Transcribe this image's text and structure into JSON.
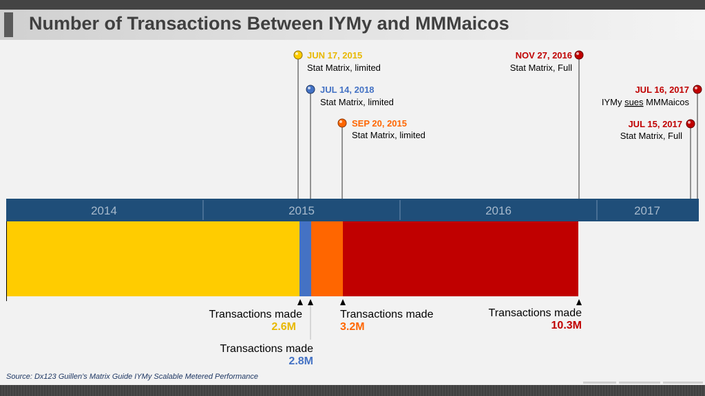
{
  "title": "Number of Transactions Between IYMy and MMMaicos",
  "source": "Source: Dx123 Guillen’s Matrix Guide IYMy Scalable Metered Performance",
  "colors": {
    "timeline_band": "#1f4e79",
    "year_text": "#a6b9cc",
    "yellow": "#ffcc00",
    "blue": "#4472c4",
    "orange": "#ff6600",
    "red": "#c00000"
  },
  "timeline": {
    "years": [
      "2014",
      "2015",
      "2016",
      "2017"
    ]
  },
  "events": [
    {
      "date": "JUN 17, 2015",
      "desc": "Stat Matrix, limited",
      "color": "#ffcc00",
      "marker": "yellow-pin-icon"
    },
    {
      "date": "JUL 14, 2018",
      "desc": "Stat Matrix, limited",
      "color": "#4472c4",
      "marker": "blue-pin-icon"
    },
    {
      "date": "SEP 20, 2015",
      "desc": "Stat Matrix, limited",
      "color": "#ff6600",
      "marker": "orange-pin-icon"
    },
    {
      "date": "NOV 27, 2016",
      "desc": "Stat Matrix, Full",
      "color": "#c00000",
      "marker": "red-pin-icon"
    },
    {
      "date": "JUL 16, 2017",
      "desc_pre": "IYMy ",
      "desc_link": "sues",
      "desc_post": " MMMaicos",
      "color": "#c00000",
      "marker": "red-pin-icon"
    },
    {
      "date": "JUL 15, 2017",
      "desc": "Stat Matrix, Full",
      "color": "#c00000",
      "marker": "red-pin-icon"
    }
  ],
  "transactions": [
    {
      "label": "Transactions made",
      "value": "2.6M",
      "color": "#e8b800"
    },
    {
      "label": "Transactions made",
      "value": "2.8M",
      "color": "#4472c4"
    },
    {
      "label": "Transactions made",
      "value": "3.2M",
      "color": "#ff6600"
    },
    {
      "label": "Transactions made",
      "value": "10.3M",
      "color": "#c00000"
    }
  ]
}
